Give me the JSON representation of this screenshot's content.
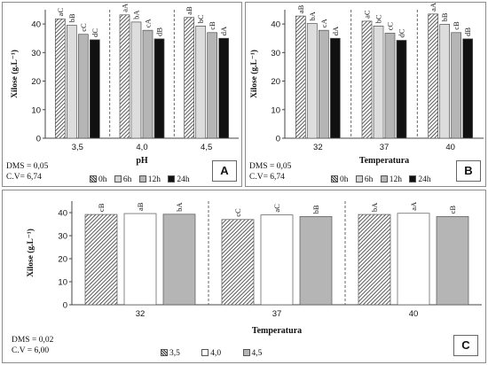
{
  "chart_data": [
    {
      "panel": "A",
      "type": "bar",
      "xlabel": "pH",
      "ylabel": "Xilose (g.L⁻¹)",
      "ylim": [
        0,
        45
      ],
      "yticks": [
        0,
        10,
        20,
        30,
        40
      ],
      "categories": [
        "3,5",
        "4,0",
        "4,5"
      ],
      "series": [
        {
          "name": "0h",
          "style": "hatch",
          "values": [
            41.8,
            43.2,
            42.3
          ],
          "labels": [
            "aC",
            "aA",
            "aB"
          ]
        },
        {
          "name": "6h",
          "style": "dots",
          "values": [
            39.6,
            40.7,
            39.3
          ],
          "labels": [
            "bB",
            "bA",
            "bC"
          ]
        },
        {
          "name": "12h",
          "style": "gray",
          "values": [
            36.4,
            37.8,
            37.0
          ],
          "labels": [
            "cC",
            "cA",
            "cB"
          ]
        },
        {
          "name": "24h",
          "style": "black",
          "values": [
            34.5,
            34.8,
            35.0
          ],
          "labels": [
            "dC",
            "dB",
            "dA"
          ]
        }
      ],
      "stats": [
        "DMS = 0,05",
        "C.V= 6,74"
      ]
    },
    {
      "panel": "B",
      "type": "bar",
      "xlabel": "Temperatura",
      "ylabel": "Xilose (g.L⁻¹)",
      "ylim": [
        0,
        45
      ],
      "yticks": [
        0,
        10,
        20,
        30,
        40
      ],
      "categories": [
        "32",
        "37",
        "40"
      ],
      "series": [
        {
          "name": "0h",
          "style": "hatch",
          "values": [
            42.8,
            41.0,
            43.5
          ],
          "labels": [
            "aB",
            "aC",
            "aA"
          ]
        },
        {
          "name": "6h",
          "style": "dots",
          "values": [
            40.2,
            39.3,
            39.9
          ],
          "labels": [
            "bA",
            "bC",
            "bB"
          ]
        },
        {
          "name": "12h",
          "style": "gray",
          "values": [
            37.8,
            36.8,
            37.0
          ],
          "labels": [
            "cA",
            "cC",
            "cB"
          ]
        },
        {
          "name": "24h",
          "style": "black",
          "values": [
            35.0,
            34.3,
            34.8
          ],
          "labels": [
            "dA",
            "dC",
            "dB"
          ]
        }
      ],
      "stats": [
        "DMS = 0,05",
        "C.V= 6,74"
      ]
    },
    {
      "panel": "C",
      "type": "bar",
      "xlabel": "Temperatura",
      "ylabel": "Xilose (g.L⁻¹)",
      "ylim": [
        0,
        45
      ],
      "yticks": [
        0,
        10,
        20,
        30,
        40
      ],
      "categories": [
        "32",
        "37",
        "40"
      ],
      "series": [
        {
          "name": "3,5",
          "style": "hatch",
          "values": [
            39.2,
            37.0,
            39.2
          ],
          "labels": [
            "cB",
            "cC",
            "bA"
          ]
        },
        {
          "name": "4,0",
          "style": "white",
          "values": [
            39.6,
            39.0,
            39.7
          ],
          "labels": [
            "aB",
            "aC",
            "aA"
          ]
        },
        {
          "name": "4,5",
          "style": "gray",
          "values": [
            39.3,
            38.3,
            38.3
          ],
          "labels": [
            "bA",
            "bB",
            "cB"
          ]
        }
      ],
      "stats": [
        "DMS = 0,02",
        "C.V = 6,00"
      ]
    }
  ]
}
